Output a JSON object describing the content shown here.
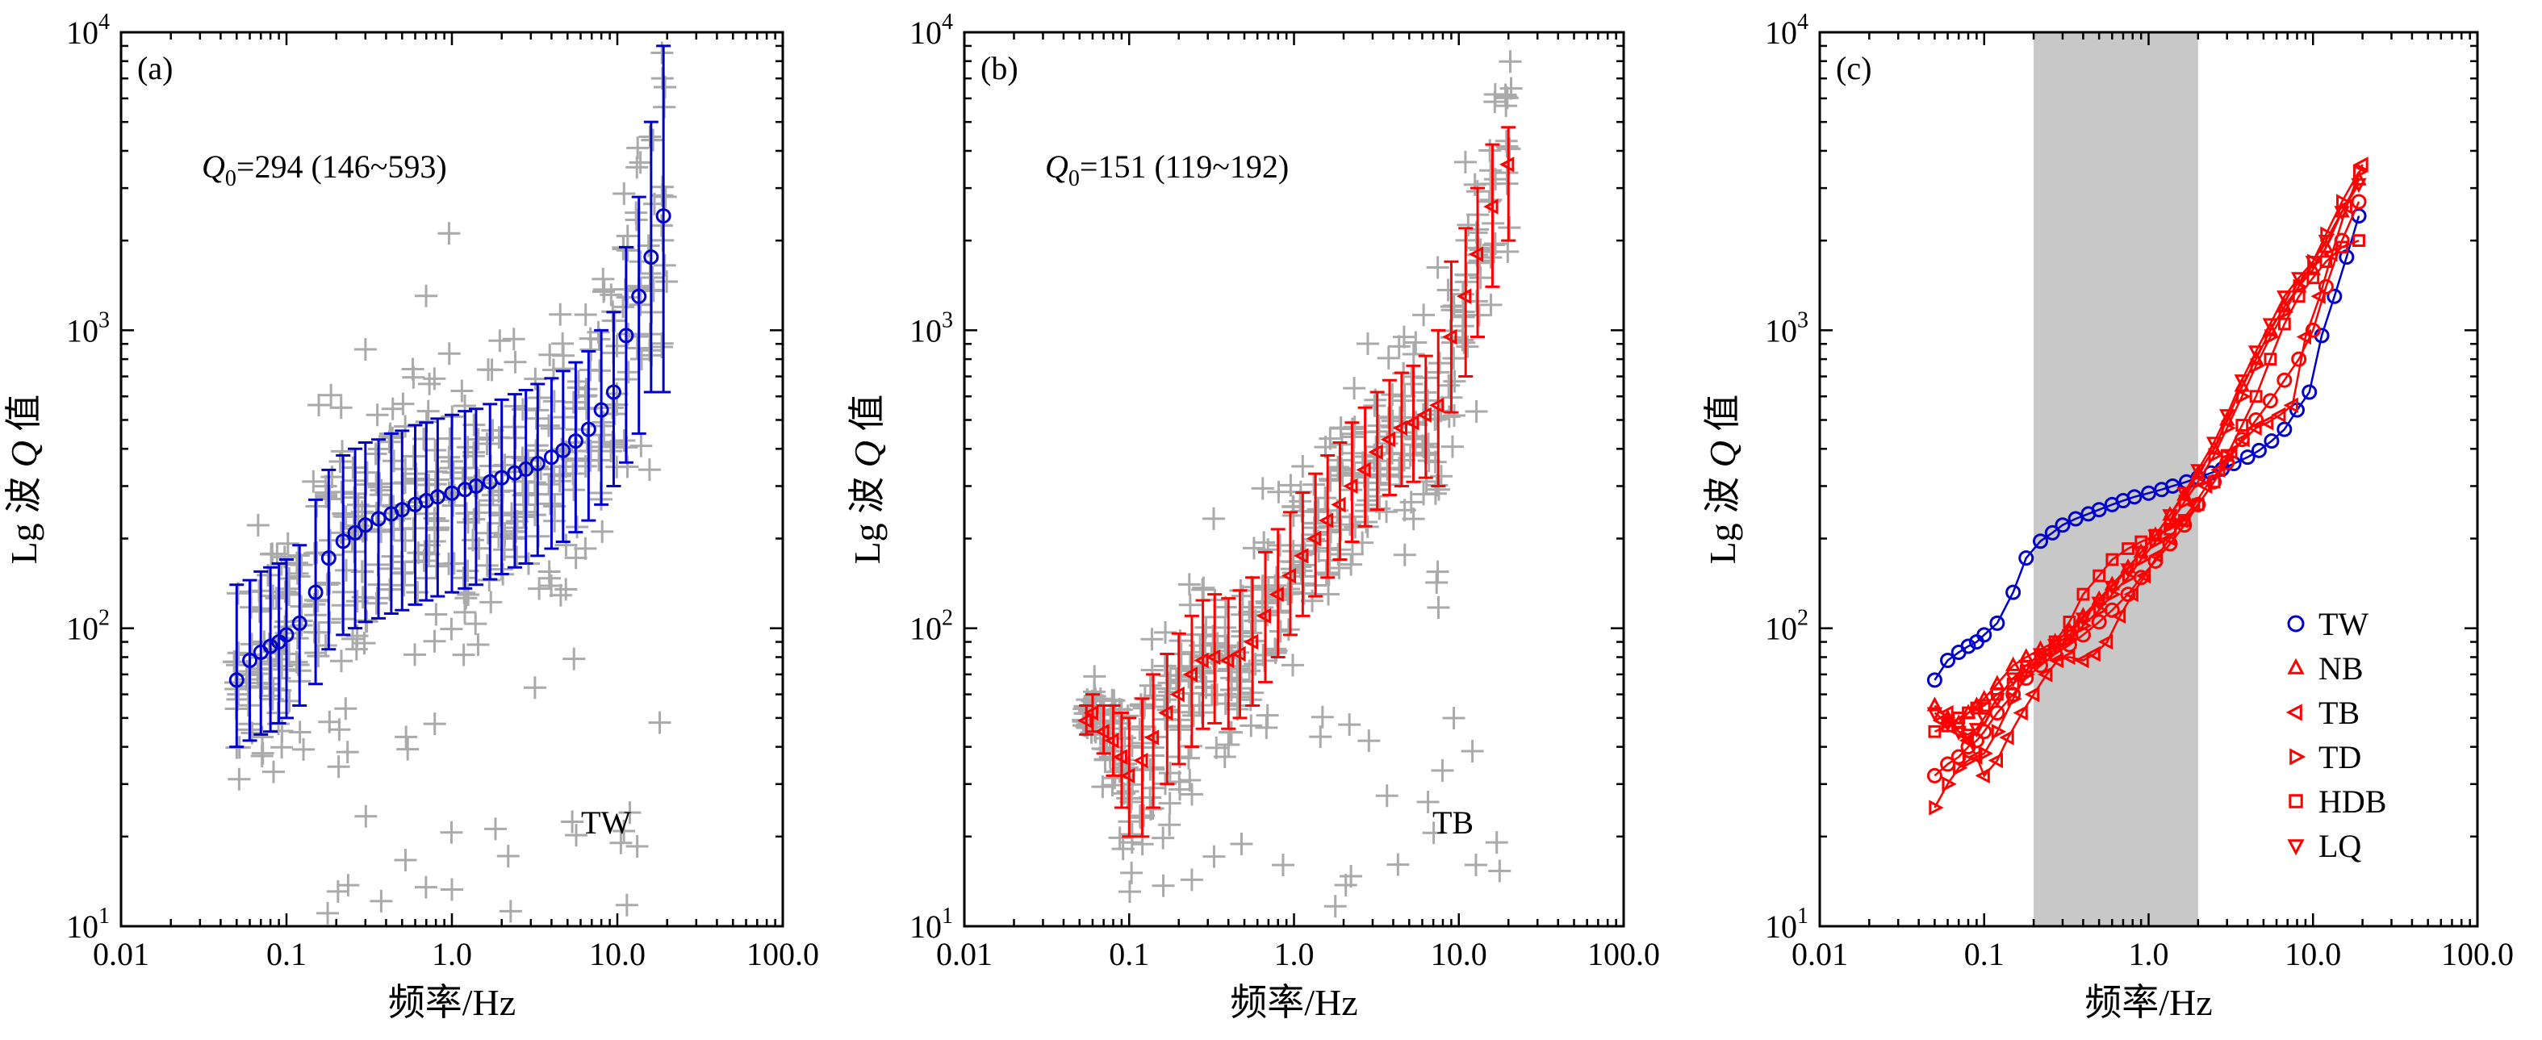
{
  "chart_data": [
    {
      "type": "scatter",
      "panel_label": "(a)",
      "xlabel": "频率/Hz",
      "ylabel": {
        "prefix": "Lg 波 ",
        "symbol": "Q",
        "suffix": " 值"
      },
      "xscale": "log",
      "yscale": "log",
      "xlim": [
        0.01,
        100
      ],
      "ylim": [
        10,
        10000
      ],
      "xticks": [
        "0.01",
        "0.1",
        "1.0",
        "10.0",
        "100.0"
      ],
      "yticks": [
        {
          "base": "10",
          "exp": "1"
        },
        {
          "base": "10",
          "exp": "2"
        },
        {
          "base": "10",
          "exp": "3"
        },
        {
          "base": "10",
          "exp": "4"
        }
      ],
      "annotation": {
        "symbol": "Q",
        "sub": "0",
        "text": "=294 (146~593)"
      },
      "region_label": "TW",
      "colors": {
        "mean": "#0000cc",
        "scatter": "#aaaaaa"
      },
      "series": [
        {
          "marker": "circle",
          "x": [
            0.05,
            0.06,
            0.07,
            0.08,
            0.09,
            0.1,
            0.12,
            0.15,
            0.18,
            0.22,
            0.26,
            0.3,
            0.36,
            0.43,
            0.5,
            0.6,
            0.7,
            0.82,
            1.0,
            1.2,
            1.4,
            1.7,
            2.0,
            2.4,
            2.8,
            3.3,
            4.0,
            4.7,
            5.6,
            6.7,
            8.0,
            9.5,
            11.3,
            13.5,
            16.0,
            19.0
          ],
          "y": [
            67,
            78,
            83,
            87,
            90,
            95,
            104,
            132,
            172,
            196,
            209,
            222,
            233,
            242,
            250,
            260,
            268,
            276,
            284,
            292,
            300,
            310,
            320,
            332,
            342,
            357,
            375,
            395,
            425,
            465,
            540,
            620,
            960,
            1300,
            1760,
            2420
          ],
          "ylow": [
            40,
            42,
            44,
            45,
            48,
            50,
            55,
            65,
            85,
            95,
            100,
            105,
            108,
            112,
            115,
            120,
            124,
            128,
            132,
            136,
            140,
            146,
            152,
            160,
            165,
            175,
            185,
            195,
            210,
            230,
            260,
            300,
            360,
            450,
            620,
            620
          ],
          "yhigh": [
            140,
            145,
            155,
            160,
            165,
            170,
            190,
            270,
            340,
            380,
            400,
            420,
            430,
            450,
            460,
            480,
            490,
            505,
            520,
            535,
            545,
            565,
            585,
            610,
            630,
            660,
            690,
            730,
            780,
            850,
            1000,
            1150,
            1900,
            2800,
            5000,
            9000
          ]
        }
      ]
    },
    {
      "type": "scatter",
      "panel_label": "(b)",
      "xlabel": "频率/Hz",
      "ylabel": {
        "prefix": "Lg 波 ",
        "symbol": "Q",
        "suffix": " 值"
      },
      "xscale": "log",
      "yscale": "log",
      "xlim": [
        0.01,
        100
      ],
      "ylim": [
        10,
        10000
      ],
      "xticks": [
        "0.01",
        "0.1",
        "1.0",
        "10.0",
        "100.0"
      ],
      "yticks": [
        {
          "base": "10",
          "exp": "1"
        },
        {
          "base": "10",
          "exp": "2"
        },
        {
          "base": "10",
          "exp": "3"
        },
        {
          "base": "10",
          "exp": "4"
        }
      ],
      "annotation": {
        "symbol": "Q",
        "sub": "0",
        "text": "=151 (119~192)"
      },
      "region_label": "TB",
      "colors": {
        "mean": "#ff0000",
        "scatter": "#aaaaaa"
      },
      "series": [
        {
          "marker": "triangle-left",
          "x": [
            0.055,
            0.06,
            0.07,
            0.08,
            0.09,
            0.1,
            0.12,
            0.14,
            0.17,
            0.2,
            0.24,
            0.28,
            0.33,
            0.4,
            0.47,
            0.56,
            0.67,
            0.8,
            0.95,
            1.13,
            1.35,
            1.6,
            1.9,
            2.25,
            2.7,
            3.2,
            3.8,
            4.5,
            5.3,
            6.3,
            7.5,
            9.0,
            11.0,
            13.0,
            16.0,
            20.0
          ],
          "y": [
            49,
            52,
            45,
            42,
            37,
            32,
            36,
            43,
            52,
            60,
            70,
            78,
            80,
            78,
            82,
            90,
            110,
            130,
            150,
            175,
            200,
            230,
            260,
            300,
            340,
            390,
            430,
            470,
            490,
            520,
            560,
            950,
            1300,
            1800,
            2600,
            3600
          ],
          "ylow": [
            44,
            45,
            38,
            32,
            25,
            20,
            20,
            25,
            30,
            35,
            40,
            46,
            48,
            46,
            50,
            55,
            66,
            80,
            95,
            110,
            128,
            148,
            170,
            195,
            220,
            250,
            280,
            300,
            310,
            320,
            300,
            530,
            700,
            950,
            1400,
            2000
          ],
          "yhigh": [
            55,
            60,
            55,
            55,
            52,
            50,
            58,
            70,
            82,
            96,
            110,
            124,
            130,
            126,
            134,
            148,
            180,
            215,
            245,
            285,
            330,
            380,
            420,
            490,
            550,
            620,
            680,
            720,
            760,
            820,
            1000,
            1700,
            2200,
            3000,
            4200,
            4800
          ]
        }
      ]
    },
    {
      "type": "line",
      "panel_label": "(c)",
      "xlabel": "频率/Hz",
      "ylabel": {
        "prefix": "Lg 波 ",
        "symbol": "Q",
        "suffix": " 值"
      },
      "xscale": "log",
      "yscale": "log",
      "xlim": [
        0.01,
        100
      ],
      "ylim": [
        10,
        10000
      ],
      "xticks": [
        "0.01",
        "0.1",
        "1.0",
        "10.0",
        "100.0"
      ],
      "yticks": [
        {
          "base": "10",
          "exp": "1"
        },
        {
          "base": "10",
          "exp": "2"
        },
        {
          "base": "10",
          "exp": "3"
        },
        {
          "base": "10",
          "exp": "4"
        }
      ],
      "shaded_band": [
        0.2,
        2.0
      ],
      "legend_position": "bottom-right",
      "series": [
        {
          "name": "TW",
          "marker": "circle",
          "color": "#0000cc",
          "x": [
            0.05,
            0.06,
            0.07,
            0.08,
            0.09,
            0.1,
            0.12,
            0.15,
            0.18,
            0.22,
            0.26,
            0.3,
            0.36,
            0.43,
            0.5,
            0.6,
            0.7,
            0.82,
            1.0,
            1.2,
            1.4,
            1.7,
            2.0,
            2.4,
            2.8,
            3.3,
            4.0,
            4.7,
            5.6,
            6.7,
            8.0,
            9.5,
            11.3,
            13.5,
            16.0,
            19.0
          ],
          "y": [
            67,
            78,
            83,
            87,
            90,
            95,
            104,
            132,
            172,
            196,
            209,
            222,
            233,
            242,
            250,
            260,
            268,
            276,
            284,
            292,
            300,
            310,
            320,
            332,
            342,
            357,
            375,
            395,
            425,
            465,
            540,
            620,
            960,
            1300,
            1760,
            2420
          ]
        },
        {
          "name": "NB",
          "marker": "triangle-up",
          "color": "#ff0000",
          "x": [
            0.05,
            0.06,
            0.07,
            0.08,
            0.09,
            0.1,
            0.12,
            0.15,
            0.18,
            0.22,
            0.27,
            0.33,
            0.4,
            0.5,
            0.6,
            0.75,
            0.9,
            1.1,
            1.35,
            1.65,
            2.0,
            2.5,
            3.0,
            3.7,
            4.5,
            5.5,
            6.7,
            8.2,
            10.0,
            12.0,
            15.0,
            19.0
          ],
          "y": [
            55,
            50,
            48,
            52,
            55,
            58,
            65,
            75,
            80,
            85,
            90,
            98,
            110,
            125,
            140,
            160,
            180,
            205,
            240,
            280,
            330,
            400,
            500,
            650,
            800,
            1000,
            1200,
            1400,
            1600,
            1900,
            2500,
            3200
          ]
        },
        {
          "name": "TB",
          "marker": "triangle-left",
          "color": "#ff0000",
          "x": [
            0.055,
            0.06,
            0.07,
            0.08,
            0.09,
            0.1,
            0.12,
            0.14,
            0.17,
            0.2,
            0.24,
            0.28,
            0.33,
            0.4,
            0.47,
            0.56,
            0.67,
            0.8,
            0.95,
            1.13,
            1.35,
            1.6,
            1.9,
            2.25,
            2.7,
            3.2,
            3.8,
            4.5,
            5.3,
            6.3,
            7.5,
            9.0,
            11.0,
            13.0,
            16.0,
            20.0
          ],
          "y": [
            49,
            52,
            45,
            42,
            37,
            32,
            36,
            43,
            52,
            60,
            70,
            78,
            80,
            78,
            82,
            90,
            110,
            130,
            150,
            175,
            200,
            230,
            260,
            300,
            340,
            390,
            430,
            470,
            490,
            520,
            560,
            950,
            1300,
            1800,
            2600,
            3600
          ]
        },
        {
          "name": "TD",
          "marker": "triangle-right",
          "color": "#ff0000",
          "x": [
            0.05,
            0.06,
            0.07,
            0.08,
            0.1,
            0.12,
            0.15,
            0.18,
            0.22,
            0.27,
            0.33,
            0.4,
            0.5,
            0.6,
            0.75,
            0.9,
            1.1,
            1.35,
            1.65,
            2.0,
            2.5,
            3.0,
            3.7,
            4.5,
            5.5,
            6.7,
            8.2,
            10.0,
            12.0,
            15.0,
            19.0
          ],
          "y": [
            25,
            30,
            34,
            36,
            38,
            45,
            58,
            70,
            78,
            85,
            92,
            102,
            115,
            130,
            148,
            170,
            195,
            225,
            265,
            310,
            380,
            470,
            600,
            760,
            950,
            1150,
            1400,
            1700,
            2100,
            2700,
            3400
          ]
        },
        {
          "name": "HDB",
          "marker": "square",
          "color": "#ff0000",
          "x": [
            0.05,
            0.06,
            0.07,
            0.08,
            0.09,
            0.1,
            0.12,
            0.15,
            0.18,
            0.22,
            0.27,
            0.33,
            0.4,
            0.5,
            0.6,
            0.75,
            0.9,
            1.1,
            1.35,
            1.65,
            2.0,
            2.5,
            3.0,
            3.7,
            4.5,
            5.5,
            6.7,
            8.2,
            10.0,
            12.0,
            15.0,
            19.0
          ],
          "y": [
            45,
            47,
            50,
            52,
            54,
            55,
            60,
            65,
            72,
            80,
            90,
            105,
            130,
            150,
            170,
            185,
            195,
            205,
            215,
            230,
            260,
            310,
            380,
            480,
            600,
            800,
            1050,
            1300,
            1500,
            1700,
            1900,
            2000
          ]
        },
        {
          "name": "LQ",
          "marker": "triangle-down",
          "color": "#ff0000",
          "x": [
            0.05,
            0.06,
            0.07,
            0.08,
            0.09,
            0.1,
            0.12,
            0.15,
            0.18,
            0.22,
            0.27,
            0.33,
            0.4,
            0.5,
            0.6,
            0.75,
            0.9,
            1.1,
            1.35,
            1.65,
            2.0,
            2.5,
            3.0,
            3.7,
            4.5,
            5.5,
            6.7,
            8.2,
            10.0,
            12.0,
            15.0,
            19.0
          ],
          "y": [
            52,
            48,
            45,
            44,
            46,
            50,
            58,
            68,
            75,
            82,
            88,
            95,
            108,
            122,
            138,
            158,
            180,
            205,
            240,
            285,
            340,
            420,
            520,
            680,
            850,
            1050,
            1300,
            1500,
            1700,
            2000,
            2500,
            3100
          ]
        },
        {
          "name": "",
          "marker": "circle",
          "color": "#ff0000",
          "x": [
            0.05,
            0.06,
            0.07,
            0.08,
            0.09,
            0.1,
            0.12,
            0.15,
            0.18,
            0.22,
            0.27,
            0.33,
            0.4,
            0.5,
            0.6,
            0.75,
            0.9,
            1.1,
            1.35,
            1.65,
            2.0,
            2.5,
            3.0,
            3.7,
            4.5,
            5.5,
            6.7,
            8.2,
            10.0,
            12.0,
            15.0,
            19.0
          ],
          "y": [
            32,
            35,
            37,
            40,
            42,
            45,
            52,
            60,
            68,
            75,
            82,
            88,
            95,
            105,
            115,
            130,
            148,
            168,
            192,
            222,
            260,
            310,
            360,
            430,
            500,
            580,
            680,
            800,
            1000,
            1400,
            2000,
            2700
          ]
        }
      ]
    }
  ]
}
